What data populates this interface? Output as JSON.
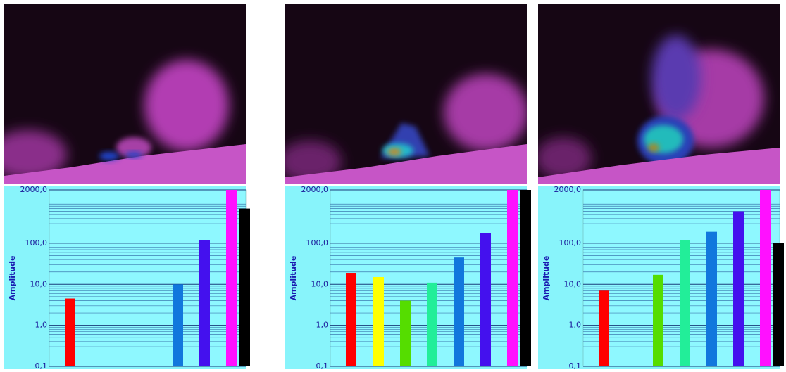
{
  "chart_data": [
    {
      "type": "bar",
      "y_label": "Amplitude",
      "log_scale": true,
      "grid": true,
      "ylim": [
        0.1,
        2000
      ],
      "yticks": [
        {
          "value": 2000,
          "label": "2000,0"
        },
        {
          "value": 100,
          "label": "100,0"
        },
        {
          "value": 10,
          "label": "10,0"
        },
        {
          "value": 1,
          "label": "1,0"
        },
        {
          "value": 0.1,
          "label": "0,1"
        }
      ],
      "colors": [
        "#ff0000",
        "#ffff00",
        "#55dd00",
        "#22ee99",
        "#1177dd",
        "#4411ee",
        "#ff11ff",
        "#000000"
      ],
      "values": [
        4.5,
        null,
        null,
        null,
        10,
        120,
        2000,
        700
      ]
    },
    {
      "type": "bar",
      "y_label": "Amplitude",
      "log_scale": true,
      "grid": true,
      "ylim": [
        0.1,
        2000
      ],
      "yticks": [
        {
          "value": 2000,
          "label": "2000,0"
        },
        {
          "value": 100,
          "label": "100,0"
        },
        {
          "value": 10,
          "label": "10,0"
        },
        {
          "value": 1,
          "label": "1,0"
        },
        {
          "value": 0.1,
          "label": "0,1"
        }
      ],
      "colors": [
        "#ff0000",
        "#ffff00",
        "#55dd00",
        "#22ee99",
        "#1177dd",
        "#4411ee",
        "#ff11ff",
        "#000000"
      ],
      "values": [
        19,
        15,
        4,
        11,
        45,
        180,
        2000,
        2000
      ]
    },
    {
      "type": "bar",
      "y_label": "Amplitude",
      "log_scale": true,
      "grid": true,
      "ylim": [
        0.1,
        2000
      ],
      "yticks": [
        {
          "value": 2000,
          "label": "2000,0"
        },
        {
          "value": 100,
          "label": "100,0"
        },
        {
          "value": 10,
          "label": "10,0"
        },
        {
          "value": 1,
          "label": "1,0"
        },
        {
          "value": 0.1,
          "label": "0,1"
        }
      ],
      "colors": [
        "#ff0000",
        "#ffff00",
        "#55dd00",
        "#22ee99",
        "#1177dd",
        "#4411ee",
        "#ff11ff",
        "#000000"
      ],
      "values": [
        7,
        null,
        17,
        120,
        190,
        600,
        2000,
        100
      ]
    }
  ]
}
